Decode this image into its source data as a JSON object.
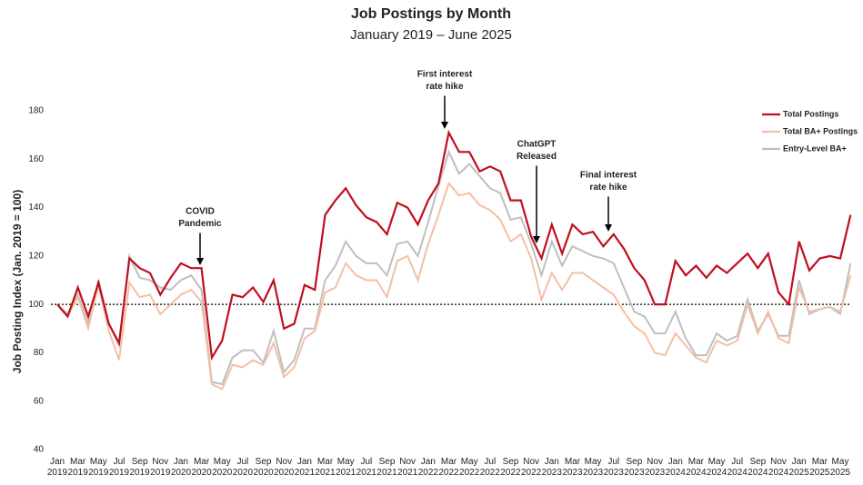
{
  "chart_data": {
    "type": "line",
    "title": "Job Postings by Month",
    "subtitle": "January 2019 – June 2025",
    "y_label": "Job Posting Index (Jan. 2019 = 100)",
    "categories": [
      "Jan 2019",
      null,
      "Mar 2019",
      null,
      "May 2019",
      null,
      "Jul 2019",
      null,
      "Sep 2019",
      null,
      "Nov 2019",
      null,
      "Jan 2020",
      null,
      "Mar 2020",
      null,
      "May 2020",
      null,
      "Jul 2020",
      null,
      "Sep 2020",
      null,
      "Nov 2020",
      null,
      "Jan 2021",
      null,
      "Mar 2021",
      null,
      "May 2021",
      null,
      "Jul 2021",
      null,
      "Sep 2021",
      null,
      "Nov 2021",
      null,
      "Jan 2022",
      null,
      "Mar 2022",
      null,
      "May 2022",
      null,
      "Jul 2022",
      null,
      "Sep 2022",
      null,
      "Nov 2022",
      null,
      "Jan 2023",
      null,
      "Mar 2023",
      null,
      "May 2023",
      null,
      "Jul 2023",
      null,
      "Sep 2023",
      null,
      "Nov 2023",
      null,
      "Jan 2024",
      null,
      "Mar 2024",
      null,
      "May 2024",
      null,
      "Jul 2024",
      null,
      "Sep 2024",
      null,
      "Nov 2024",
      null,
      "Jan 2025",
      null,
      "Mar 2025",
      null,
      "May 2025",
      null
    ],
    "series": [
      {
        "name": "Total Postings",
        "color": "#c00f1e",
        "values": [
          100,
          95,
          107,
          95,
          109,
          92,
          84,
          119,
          115,
          113,
          104,
          111,
          117,
          115,
          115,
          78,
          85,
          104,
          103,
          107,
          101,
          110,
          90,
          92,
          108,
          106,
          137,
          143,
          148,
          141,
          136,
          134,
          129,
          142,
          140,
          133,
          143,
          150,
          171,
          163,
          163,
          155,
          157,
          155,
          143,
          143,
          128,
          119,
          133,
          121,
          133,
          129,
          130,
          124,
          129,
          123,
          115,
          110,
          100,
          100,
          118,
          112,
          116,
          111,
          116,
          113,
          117,
          121,
          115,
          121,
          105,
          100,
          126,
          114,
          119,
          120,
          119,
          137
        ]
      },
      {
        "name": "Total BA+ Postings",
        "color": "#f4bfa4",
        "values": [
          100,
          95,
          103,
          90,
          108,
          89,
          77,
          109,
          103,
          104,
          96,
          100,
          104,
          106,
          101,
          67,
          65,
          75,
          74,
          77,
          75,
          84,
          70,
          74,
          86,
          89,
          105,
          107,
          117,
          112,
          110,
          110,
          103,
          118,
          120,
          110,
          125,
          137,
          150,
          145,
          146,
          141,
          139,
          135,
          126,
          129,
          119,
          102,
          113,
          106,
          113,
          113,
          110,
          107,
          104,
          97,
          91,
          88,
          80,
          79,
          88,
          83,
          78,
          76,
          85,
          83,
          85,
          100,
          88,
          97,
          86,
          84,
          107,
          97,
          98,
          99,
          97,
          112
        ]
      },
      {
        "name": "Entry-Level BA+",
        "color": "#bfbfbf",
        "values": [
          100,
          96,
          104,
          92,
          110,
          92,
          83,
          120,
          111,
          110,
          107,
          106,
          110,
          112,
          106,
          68,
          67,
          78,
          81,
          81,
          76,
          89,
          72,
          77,
          90,
          90,
          110,
          116,
          126,
          120,
          117,
          117,
          112,
          125,
          126,
          120,
          134,
          149,
          163,
          154,
          158,
          153,
          148,
          146,
          135,
          136,
          125,
          112,
          126,
          116,
          124,
          122,
          120,
          119,
          117,
          107,
          97,
          95,
          88,
          88,
          97,
          86,
          79,
          79,
          88,
          85,
          87,
          102,
          89,
          96,
          87,
          87,
          110,
          96,
          98,
          99,
          96,
          117
        ]
      }
    ],
    "ylim": [
      40,
      185
    ],
    "yticks": [
      40,
      60,
      80,
      100,
      120,
      140,
      160,
      180
    ],
    "reference_line": 100,
    "legend": "top-right",
    "annotations": [
      {
        "lines": [
          "COVID",
          "Pandemic"
        ]
      },
      {
        "lines": [
          "First interest",
          "rate hike"
        ]
      },
      {
        "lines": [
          "ChatGPT",
          "Released"
        ]
      },
      {
        "lines": [
          "Final interest",
          "rate hike"
        ]
      }
    ]
  }
}
